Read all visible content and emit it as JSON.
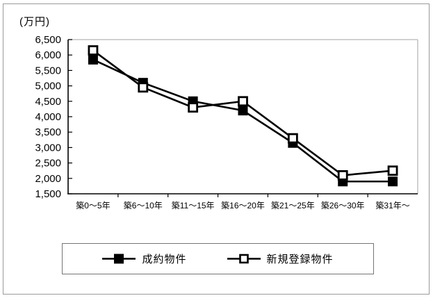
{
  "chart_data": {
    "type": "line",
    "title": "",
    "ylabel": "(万円)",
    "xlabel": "",
    "categories": [
      "築0～5年",
      "築6～10年",
      "築11～15年",
      "築16～20年",
      "築21～25年",
      "築26～30年",
      "築31年～"
    ],
    "series": [
      {
        "name": "成約物件",
        "marker": "filled-square",
        "color": "#000000",
        "values": [
          5850,
          5100,
          4500,
          4200,
          3150,
          1900,
          1900
        ]
      },
      {
        "name": "新規登録物件",
        "marker": "open-square",
        "color": "#000000",
        "values": [
          6150,
          4950,
          4300,
          4500,
          3300,
          2100,
          2250
        ]
      }
    ],
    "ylim": [
      1500,
      6500
    ],
    "ytick_step": 500,
    "ytick_labels": [
      "1,500",
      "2,000",
      "2,500",
      "3,000",
      "3,500",
      "4,000",
      "4,500",
      "5,000",
      "5,500",
      "6,000",
      "6,500"
    ],
    "grid": false,
    "legend_position": "bottom"
  },
  "colors": {
    "line": "#000000",
    "axis": "#000000",
    "plot_border": "#c0c0c0",
    "frame_border": "#9a9a9a",
    "legend_border": "#757575",
    "background": "#ffffff",
    "text": "#000000"
  }
}
